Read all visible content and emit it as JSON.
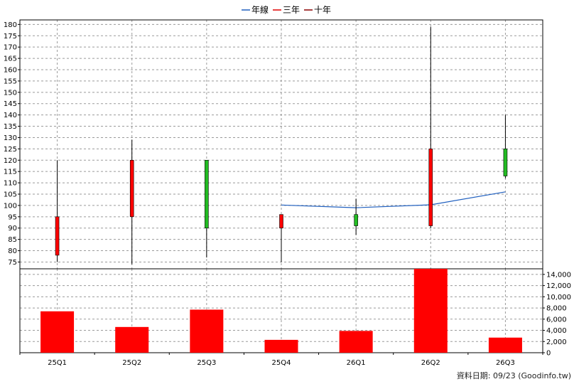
{
  "legend": [
    {
      "label": "年線",
      "color": "#1f5fbf"
    },
    {
      "label": "三年",
      "color": "#e00000"
    },
    {
      "label": "十年",
      "color": "#8b0000"
    }
  ],
  "footer": "資料日期: 09/23  (Goodinfo.tw)",
  "chart_data": {
    "type": "candlestick",
    "categories": [
      "25Q1",
      "25Q2",
      "25Q3",
      "25Q4",
      "26Q1",
      "26Q2",
      "26Q3"
    ],
    "price": {
      "ylim": [
        72,
        182
      ],
      "ticks": [
        75,
        80,
        85,
        90,
        95,
        100,
        105,
        110,
        115,
        120,
        125,
        130,
        135,
        140,
        145,
        150,
        155,
        160,
        165,
        170,
        175,
        180
      ],
      "candles": [
        {
          "open": 78,
          "close": 95,
          "high": 120,
          "low": 75
        },
        {
          "open": 95,
          "close": 120,
          "high": 129,
          "low": 74
        },
        {
          "open": 120,
          "close": 90,
          "high": 120,
          "low": 77
        },
        {
          "open": 90,
          "close": 96,
          "high": 96,
          "low": 75
        },
        {
          "open": 96,
          "close": 91,
          "high": 103,
          "low": 87
        },
        {
          "open": 91,
          "close": 125,
          "high": 179,
          "low": 90
        },
        {
          "open": 125,
          "close": 113,
          "high": 140,
          "low": 112
        }
      ],
      "up_color": "#ff0000",
      "down_color": "#22bb22"
    },
    "year_line": {
      "name": "年線",
      "color": "#1f5fbf",
      "start_index": 3,
      "values": [
        100.2,
        99,
        100.3,
        106
      ]
    },
    "volume": {
      "ylim": [
        0,
        15000
      ],
      "ticks": [
        0,
        2000,
        4000,
        6000,
        8000,
        10000,
        12000,
        14000
      ],
      "tick_labels": [
        "0",
        "2,000",
        "4,000",
        "6,000",
        "8,000",
        "10,000",
        "12,000",
        "14,000"
      ],
      "values": [
        7400,
        4600,
        7700,
        2300,
        3900,
        15200,
        2700
      ],
      "color": "#ff0000"
    }
  }
}
